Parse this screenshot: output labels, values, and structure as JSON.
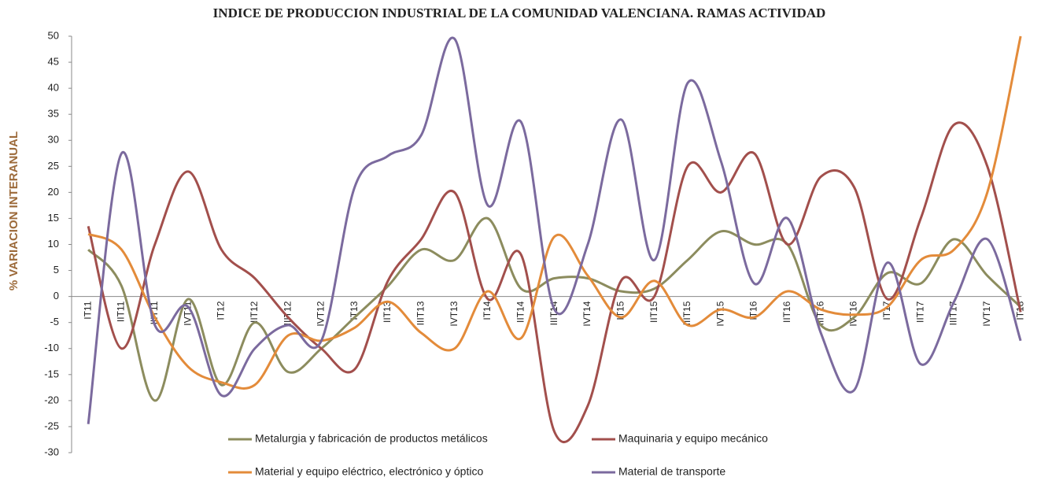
{
  "chart_data": {
    "type": "line",
    "title": "INDICE DE PRODUCCION INDUSTRIAL DE LA COMUNIDAD VALENCIANA. RAMAS ACTIVIDAD",
    "y_label": "% VARIACION INTERANUAL",
    "categories": [
      "IT11",
      "IIT11",
      "IIIT11",
      "IVT11",
      "IT12",
      "IIT12",
      "IIIT12",
      "IVT12",
      "IT13",
      "IIT13",
      "IIIT13",
      "IVT13",
      "IT14",
      "IIT14",
      "IIIT14",
      "IVT14",
      "IT15",
      "IIT15",
      "IIIT15",
      "IVT15",
      "IT16",
      "IIT16",
      "IIIT16",
      "IVT16",
      "IT17",
      "IIT17",
      "IIIT17",
      "IVT17",
      "IT18"
    ],
    "series": [
      {
        "name": "Metalurgia y fabricación de productos metálicos",
        "color": "#8c8c5e",
        "values": [
          9,
          2,
          -20,
          -0.5,
          -17,
          -5,
          -14.5,
          -10,
          -4,
          2,
          9,
          7,
          15,
          1.5,
          3.5,
          3.5,
          1,
          1.5,
          7,
          12.5,
          10,
          10,
          -5.5,
          -4,
          4.5,
          2.5,
          11,
          4,
          -2
        ]
      },
      {
        "name": "Maquinaria y equipo mecánico",
        "color": "#a24f4c",
        "values": [
          13.5,
          -10,
          10,
          24,
          9,
          3.5,
          -4,
          -10,
          -14,
          3,
          11,
          20,
          -0.5,
          8,
          -26,
          -21,
          3,
          0,
          25,
          20,
          27.5,
          10,
          23,
          21,
          -0.5,
          15,
          33,
          25,
          -3
        ]
      },
      {
        "name": "Material y equipo eléctrico, electrónico y óptico",
        "color": "#e38b3a",
        "values": [
          12,
          9,
          -4,
          -13.5,
          -16.5,
          -17,
          -7.5,
          -8.5,
          -6,
          -1,
          -7,
          -10,
          1,
          -8,
          11.5,
          4,
          -4,
          3,
          -5.5,
          -2.5,
          -4,
          1,
          -2.5,
          -3.5,
          -2,
          7,
          9,
          20,
          50
        ]
      },
      {
        "name": "Material de transporte",
        "color": "#7b6a9e",
        "values": [
          -24.5,
          27.5,
          -5.5,
          -2,
          -19,
          -10,
          -5.5,
          -8.5,
          21,
          27,
          31,
          49.5,
          17.5,
          33.5,
          -2.5,
          10,
          34,
          7,
          41,
          26,
          2.5,
          15,
          -7,
          -18,
          6.5,
          -13,
          -1,
          11,
          -8.5
        ]
      }
    ],
    "ylim": [
      -30,
      50
    ],
    "yticks": [
      -30,
      -25,
      -20,
      -15,
      -10,
      -5,
      0,
      5,
      10,
      15,
      20,
      25,
      30,
      35,
      40,
      45,
      50
    ]
  }
}
